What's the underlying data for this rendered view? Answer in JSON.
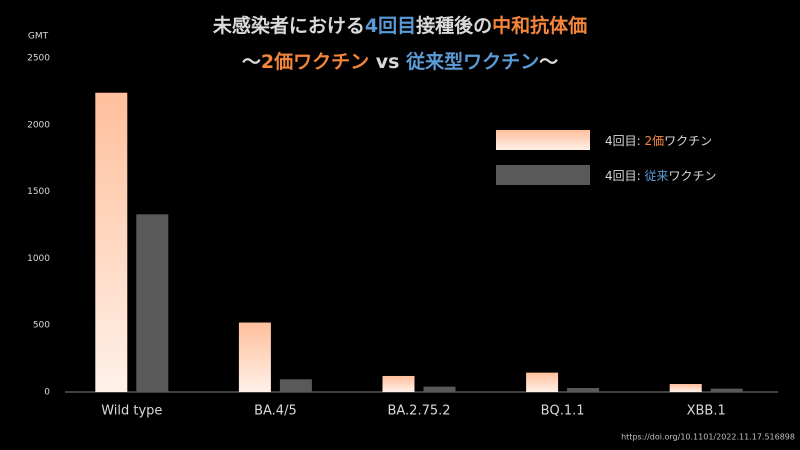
{
  "chart_data": {
    "type": "bar",
    "title": [
      [
        {
          "text": "未感染者における",
          "color": "#d9d9d9"
        },
        {
          "text": "4回目",
          "color": "#5b9bd5"
        },
        {
          "text": "接種後の",
          "color": "#d9d9d9"
        },
        {
          "text": "中和抗体価",
          "color": "#f4853a"
        }
      ],
      [
        {
          "text": "～",
          "color": "#d9d9d9"
        },
        {
          "text": "2価",
          "color": "#f4853a"
        },
        {
          "text": "ワクチン",
          "color": "#f4853a"
        },
        {
          "text": " vs ",
          "color": "#d9d9d9"
        },
        {
          "text": "従来型",
          "color": "#5b9bd5"
        },
        {
          "text": "ワクチン",
          "color": "#5b9bd5"
        },
        {
          "text": "～",
          "color": "#d9d9d9"
        }
      ]
    ],
    "y_label": "GMT",
    "source": "https://doi.org/10.1101/2022.11.17.516898",
    "categories": [
      "Wild type",
      "BA.4/5",
      "BA.2.75.2",
      "BQ.1.1",
      "XBB.1"
    ],
    "series": [
      {
        "name": [
          {
            "text": "4回目: ",
            "color": "#d9d9d9"
          },
          {
            "text": "2価",
            "color": "#f4853a"
          },
          {
            "text": "ワクチン",
            "color": "#d9d9d9"
          }
        ],
        "color": [
          "#ffbf9c",
          "#fff1e8"
        ],
        "values": [
          2240,
          520,
          120,
          145,
          60
        ]
      },
      {
        "name": [
          {
            "text": "4回目: ",
            "color": "#d9d9d9"
          },
          {
            "text": "従来",
            "color": "#5b9bd5"
          },
          {
            "text": "ワクチン",
            "color": "#d9d9d9"
          }
        ],
        "color": [
          "#595959",
          "#595959"
        ],
        "values": [
          1330,
          95,
          40,
          30,
          25
        ]
      }
    ],
    "ylim": [
      0,
      2500
    ],
    "yticks": [
      0,
      500,
      1000,
      1500,
      2000,
      2500
    ],
    "grid": false,
    "legend": "upper right"
  }
}
